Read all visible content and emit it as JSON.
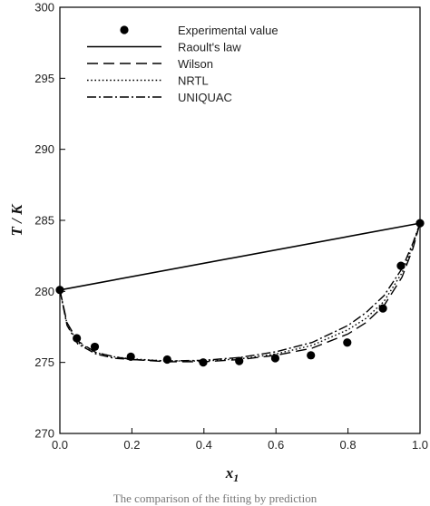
{
  "chart_data": {
    "type": "line",
    "xlabel": "x",
    "xlabel_sub": "1",
    "ylabel": "T / K",
    "xlim": [
      0.0,
      1.0
    ],
    "ylim": [
      270,
      300
    ],
    "x_ticks": [
      "0.0",
      "0.2",
      "0.4",
      "0.6",
      "0.8",
      "1.0"
    ],
    "y_ticks": [
      "270",
      "275",
      "280",
      "285",
      "290",
      "295",
      "300"
    ],
    "legend_position": "top-center",
    "grid": false,
    "series": [
      {
        "name": "Experimental value",
        "type": "scatter",
        "style": "filled-circle",
        "x": [
          0.0,
          0.047,
          0.097,
          0.197,
          0.298,
          0.398,
          0.498,
          0.598,
          0.697,
          0.798,
          0.897,
          0.947,
          1.0
        ],
        "y": [
          280.1,
          276.7,
          276.1,
          275.4,
          275.2,
          275.0,
          275.1,
          275.3,
          275.5,
          276.4,
          278.8,
          281.8,
          284.8
        ]
      },
      {
        "name": "Raoult's law",
        "type": "line",
        "style": "solid",
        "x": [
          0.0,
          1.0
        ],
        "y": [
          280.1,
          284.8
        ]
      },
      {
        "name": "Wilson",
        "type": "line",
        "style": "long-dash",
        "x": [
          0.0,
          0.02,
          0.05,
          0.1,
          0.15,
          0.2,
          0.3,
          0.4,
          0.5,
          0.6,
          0.7,
          0.8,
          0.85,
          0.9,
          0.95,
          0.98,
          1.0
        ],
        "y": [
          280.1,
          277.8,
          276.5,
          275.7,
          275.4,
          275.2,
          275.05,
          275.05,
          275.2,
          275.5,
          276.0,
          277.0,
          277.8,
          279.0,
          281.0,
          283.0,
          284.8
        ]
      },
      {
        "name": "NRTL",
        "type": "line",
        "style": "dotted",
        "x": [
          0.0,
          0.02,
          0.05,
          0.1,
          0.15,
          0.2,
          0.3,
          0.4,
          0.5,
          0.6,
          0.7,
          0.8,
          0.85,
          0.9,
          0.95,
          0.98,
          1.0
        ],
        "y": [
          280.1,
          277.7,
          276.4,
          275.7,
          275.4,
          275.25,
          275.1,
          275.1,
          275.25,
          275.6,
          276.2,
          277.3,
          278.1,
          279.3,
          281.3,
          283.2,
          284.8
        ]
      },
      {
        "name": "UNIQUAC",
        "type": "line",
        "style": "dash-dot",
        "x": [
          0.0,
          0.02,
          0.05,
          0.1,
          0.15,
          0.2,
          0.3,
          0.4,
          0.5,
          0.6,
          0.7,
          0.8,
          0.85,
          0.9,
          0.95,
          0.98,
          1.0
        ],
        "y": [
          280.1,
          277.6,
          276.3,
          275.6,
          275.3,
          275.2,
          275.1,
          275.15,
          275.35,
          275.75,
          276.4,
          277.6,
          278.5,
          279.7,
          281.6,
          283.4,
          284.8
        ]
      }
    ]
  },
  "caption": "The comparison of the fitting by prediction"
}
